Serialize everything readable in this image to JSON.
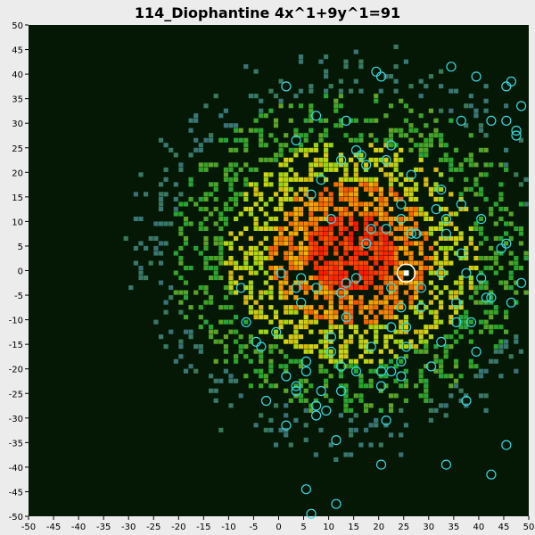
{
  "chart_data": {
    "type": "heatmap",
    "title": "114_Diophantine 4x^1+9y^1=91",
    "xlim": [
      -50,
      50
    ],
    "ylim": [
      -50,
      50
    ],
    "x_ticks": [
      -50,
      -45,
      -40,
      -35,
      -30,
      -25,
      -20,
      -15,
      -10,
      -5,
      0,
      5,
      10,
      15,
      20,
      25,
      30,
      35,
      40,
      45,
      50
    ],
    "y_ticks": [
      50,
      45,
      40,
      35,
      30,
      25,
      20,
      15,
      10,
      5,
      0,
      -5,
      -10,
      -15,
      -20,
      -25,
      -30,
      -35,
      -40,
      -45,
      -50
    ],
    "colors": {
      "plot_background": "#051805",
      "page_background": "#ececec",
      "highlight_ring": "#ffffff",
      "solution_ring": "#38d8e0",
      "hot": "#ff1a00",
      "warm": "#ff8c00",
      "mid": "#d8d800",
      "cool": "#44cc44",
      "cold": "#3c6c78"
    },
    "highlighted_point": {
      "x": 25,
      "y": -1
    },
    "solution_points": [
      [
        -8,
        -4
      ],
      [
        -7,
        -11
      ],
      [
        -5,
        -15
      ],
      [
        -4,
        -16
      ],
      [
        -3,
        -27
      ],
      [
        -1,
        -13
      ],
      [
        0,
        -1
      ],
      [
        1,
        -22
      ],
      [
        1,
        -32
      ],
      [
        1,
        37
      ],
      [
        3,
        -4
      ],
      [
        3,
        -24
      ],
      [
        3,
        -25
      ],
      [
        3,
        26
      ],
      [
        4,
        -2
      ],
      [
        4,
        -7
      ],
      [
        5,
        -19
      ],
      [
        5,
        -21
      ],
      [
        5,
        -45
      ],
      [
        6,
        -50
      ],
      [
        6,
        15
      ],
      [
        7,
        -4
      ],
      [
        7,
        -28
      ],
      [
        7,
        -30
      ],
      [
        7,
        31
      ],
      [
        8,
        -25
      ],
      [
        8,
        18
      ],
      [
        9,
        -29
      ],
      [
        10,
        -14
      ],
      [
        10,
        -17
      ],
      [
        10,
        10
      ],
      [
        11,
        -35
      ],
      [
        11,
        -48
      ],
      [
        12,
        -5
      ],
      [
        12,
        -20
      ],
      [
        12,
        -25
      ],
      [
        12,
        22
      ],
      [
        13,
        -3
      ],
      [
        13,
        -10
      ],
      [
        13,
        30
      ],
      [
        15,
        -2
      ],
      [
        15,
        -21
      ],
      [
        15,
        24
      ],
      [
        16,
        23
      ],
      [
        17,
        21
      ],
      [
        17,
        5
      ],
      [
        18,
        -16
      ],
      [
        18,
        8
      ],
      [
        19,
        40
      ],
      [
        20,
        -21
      ],
      [
        20,
        -24
      ],
      [
        20,
        -40
      ],
      [
        20,
        39
      ],
      [
        21,
        -31
      ],
      [
        21,
        22
      ],
      [
        21,
        8
      ],
      [
        22,
        -4
      ],
      [
        22,
        -12
      ],
      [
        22,
        -21
      ],
      [
        22,
        25
      ],
      [
        24,
        -8
      ],
      [
        24,
        -19
      ],
      [
        24,
        -22
      ],
      [
        24,
        10
      ],
      [
        24,
        13
      ],
      [
        25,
        -12
      ],
      [
        25,
        -16
      ],
      [
        26,
        19
      ],
      [
        26,
        7
      ],
      [
        27,
        7
      ],
      [
        28,
        -4
      ],
      [
        28,
        -8
      ],
      [
        30,
        -20
      ],
      [
        31,
        12
      ],
      [
        32,
        -1
      ],
      [
        32,
        -15
      ],
      [
        32,
        16
      ],
      [
        33,
        -40
      ],
      [
        33,
        10
      ],
      [
        33,
        7
      ],
      [
        34,
        41
      ],
      [
        35,
        -7
      ],
      [
        35,
        -11
      ],
      [
        36,
        30
      ],
      [
        36,
        3
      ],
      [
        36,
        13
      ],
      [
        37,
        -1
      ],
      [
        37,
        -27
      ],
      [
        38,
        -11
      ],
      [
        39,
        -17
      ],
      [
        39,
        39
      ],
      [
        40,
        -2
      ],
      [
        40,
        10
      ],
      [
        41,
        -6
      ],
      [
        42,
        -6
      ],
      [
        42,
        -42
      ],
      [
        42,
        30
      ],
      [
        44,
        4
      ],
      [
        45,
        -36
      ],
      [
        45,
        5
      ],
      [
        45,
        30
      ],
      [
        45,
        37
      ],
      [
        46,
        -7
      ],
      [
        46,
        38
      ],
      [
        47,
        27
      ],
      [
        47,
        28
      ],
      [
        48,
        -3
      ],
      [
        48,
        33
      ]
    ]
  }
}
